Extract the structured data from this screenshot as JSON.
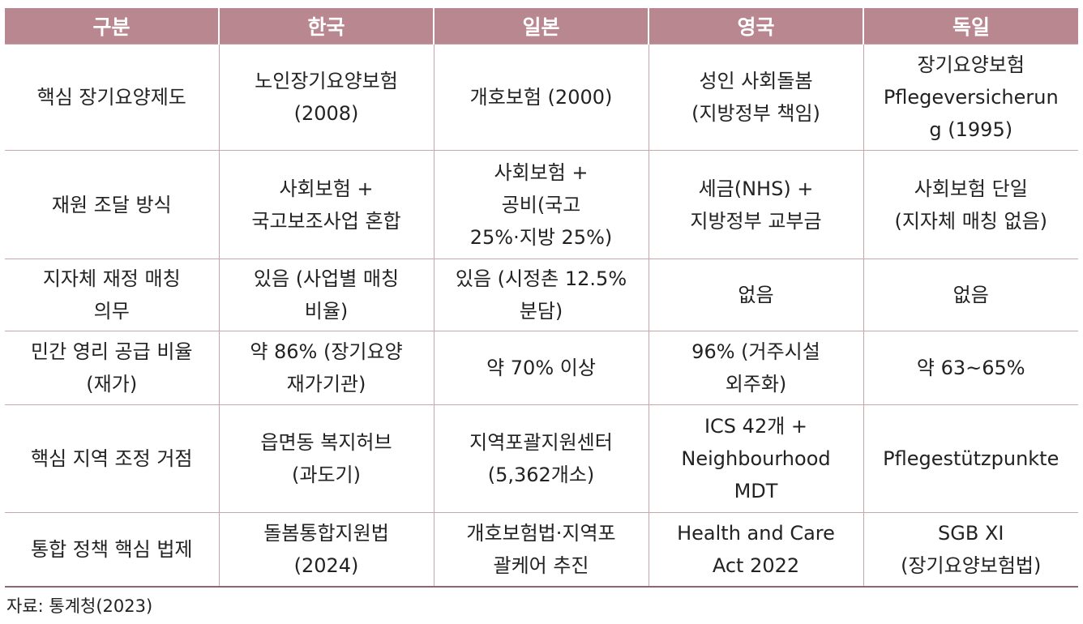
{
  "colors": {
    "header_bg": "#b9878f",
    "header_text": "#ffffff",
    "grid": "#c9a5ac"
  },
  "table": {
    "headers": [
      "구분",
      "한국",
      "일본",
      "영국",
      "독일"
    ],
    "rows": [
      {
        "cells": [
          [
            "핵심 장기요양제도"
          ],
          [
            "노인장기요양보험",
            "(2008)"
          ],
          [
            "개호보험 (2000)"
          ],
          [
            "성인 사회돌봄",
            "(지방정부 책임)"
          ],
          [
            "장기요양보험",
            "Pflegeversicherun",
            "g (1995)"
          ]
        ]
      },
      {
        "cells": [
          [
            "재원 조달 방식"
          ],
          [
            "사회보험 +",
            "국고보조사업 혼합"
          ],
          [
            "사회보험 +",
            "공비(국고",
            "25%·지방 25%)"
          ],
          [
            "세금(NHS) +",
            "지방정부 교부금"
          ],
          [
            "사회보험 단일",
            "(지자체 매칭 없음)"
          ]
        ]
      },
      {
        "cells": [
          [
            "지자체 재정 매칭",
            "의무"
          ],
          [
            "있음 (사업별 매칭",
            "비율)"
          ],
          [
            "있음 (시정촌 12.5%",
            "분담)"
          ],
          [
            "없음"
          ],
          [
            "없음"
          ]
        ]
      },
      {
        "cells": [
          [
            "민간 영리 공급 비율",
            "(재가)"
          ],
          [
            "약 86% (장기요양",
            "재가기관)"
          ],
          [
            "약 70% 이상"
          ],
          [
            "96% (거주시설",
            "외주화)"
          ],
          [
            "약 63~65%"
          ]
        ]
      },
      {
        "cells": [
          [
            "핵심 지역 조정 거점"
          ],
          [
            "읍면동 복지허브",
            "(과도기)"
          ],
          [
            "지역포괄지원센터",
            "(5,362개소)"
          ],
          [
            "ICS 42개 +",
            "Neighbourhood",
            "MDT"
          ],
          [
            "Pflegestützpunkte"
          ]
        ]
      },
      {
        "cells": [
          [
            "통합 정책 핵심 법제"
          ],
          [
            "돌봄통합지원법",
            "(2024)"
          ],
          [
            "개호보험법·지역포",
            "괄케어 추진"
          ],
          [
            "Health and Care",
            "Act 2022"
          ],
          [
            "SGB XI",
            "(장기요양보험법)"
          ]
        ]
      }
    ]
  },
  "source": "자료: 통계청(2023)"
}
